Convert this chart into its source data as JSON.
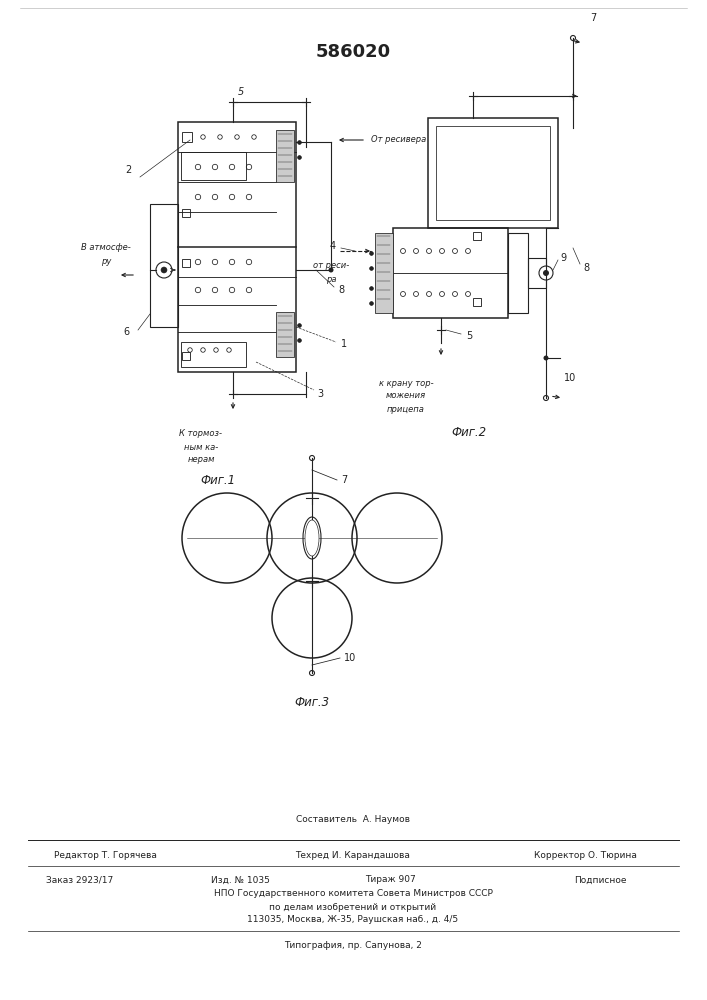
{
  "title": "586020",
  "background": "#ffffff",
  "fig1_label": "Фиг.1",
  "fig2_label": "Фиг.2",
  "fig3_label": "Фиг.3",
  "footer_sestavitel": "Составитель  А. Наумов",
  "footer_line1_left": "Редактор Т. Горячева",
  "footer_line1_mid": "Техред И. Карандашова",
  "footer_line1_right": "Корректор О. Тюрина",
  "footer_line2_left": "Заказ 2923/17",
  "footer_line2_mid1": "Изд. № 1035",
  "footer_line2_mid2": "Тираж 907",
  "footer_line2_right": "Подписное",
  "footer_line3": "НПО Государственного комитета Совета Министров СССР",
  "footer_line4": "по делам изобретений и открытий",
  "footer_line5": "113035, Москва, Ж-35, Раушская наб., д. 4/5",
  "footer_line6": "Типография, пр. Сапунова, 2"
}
